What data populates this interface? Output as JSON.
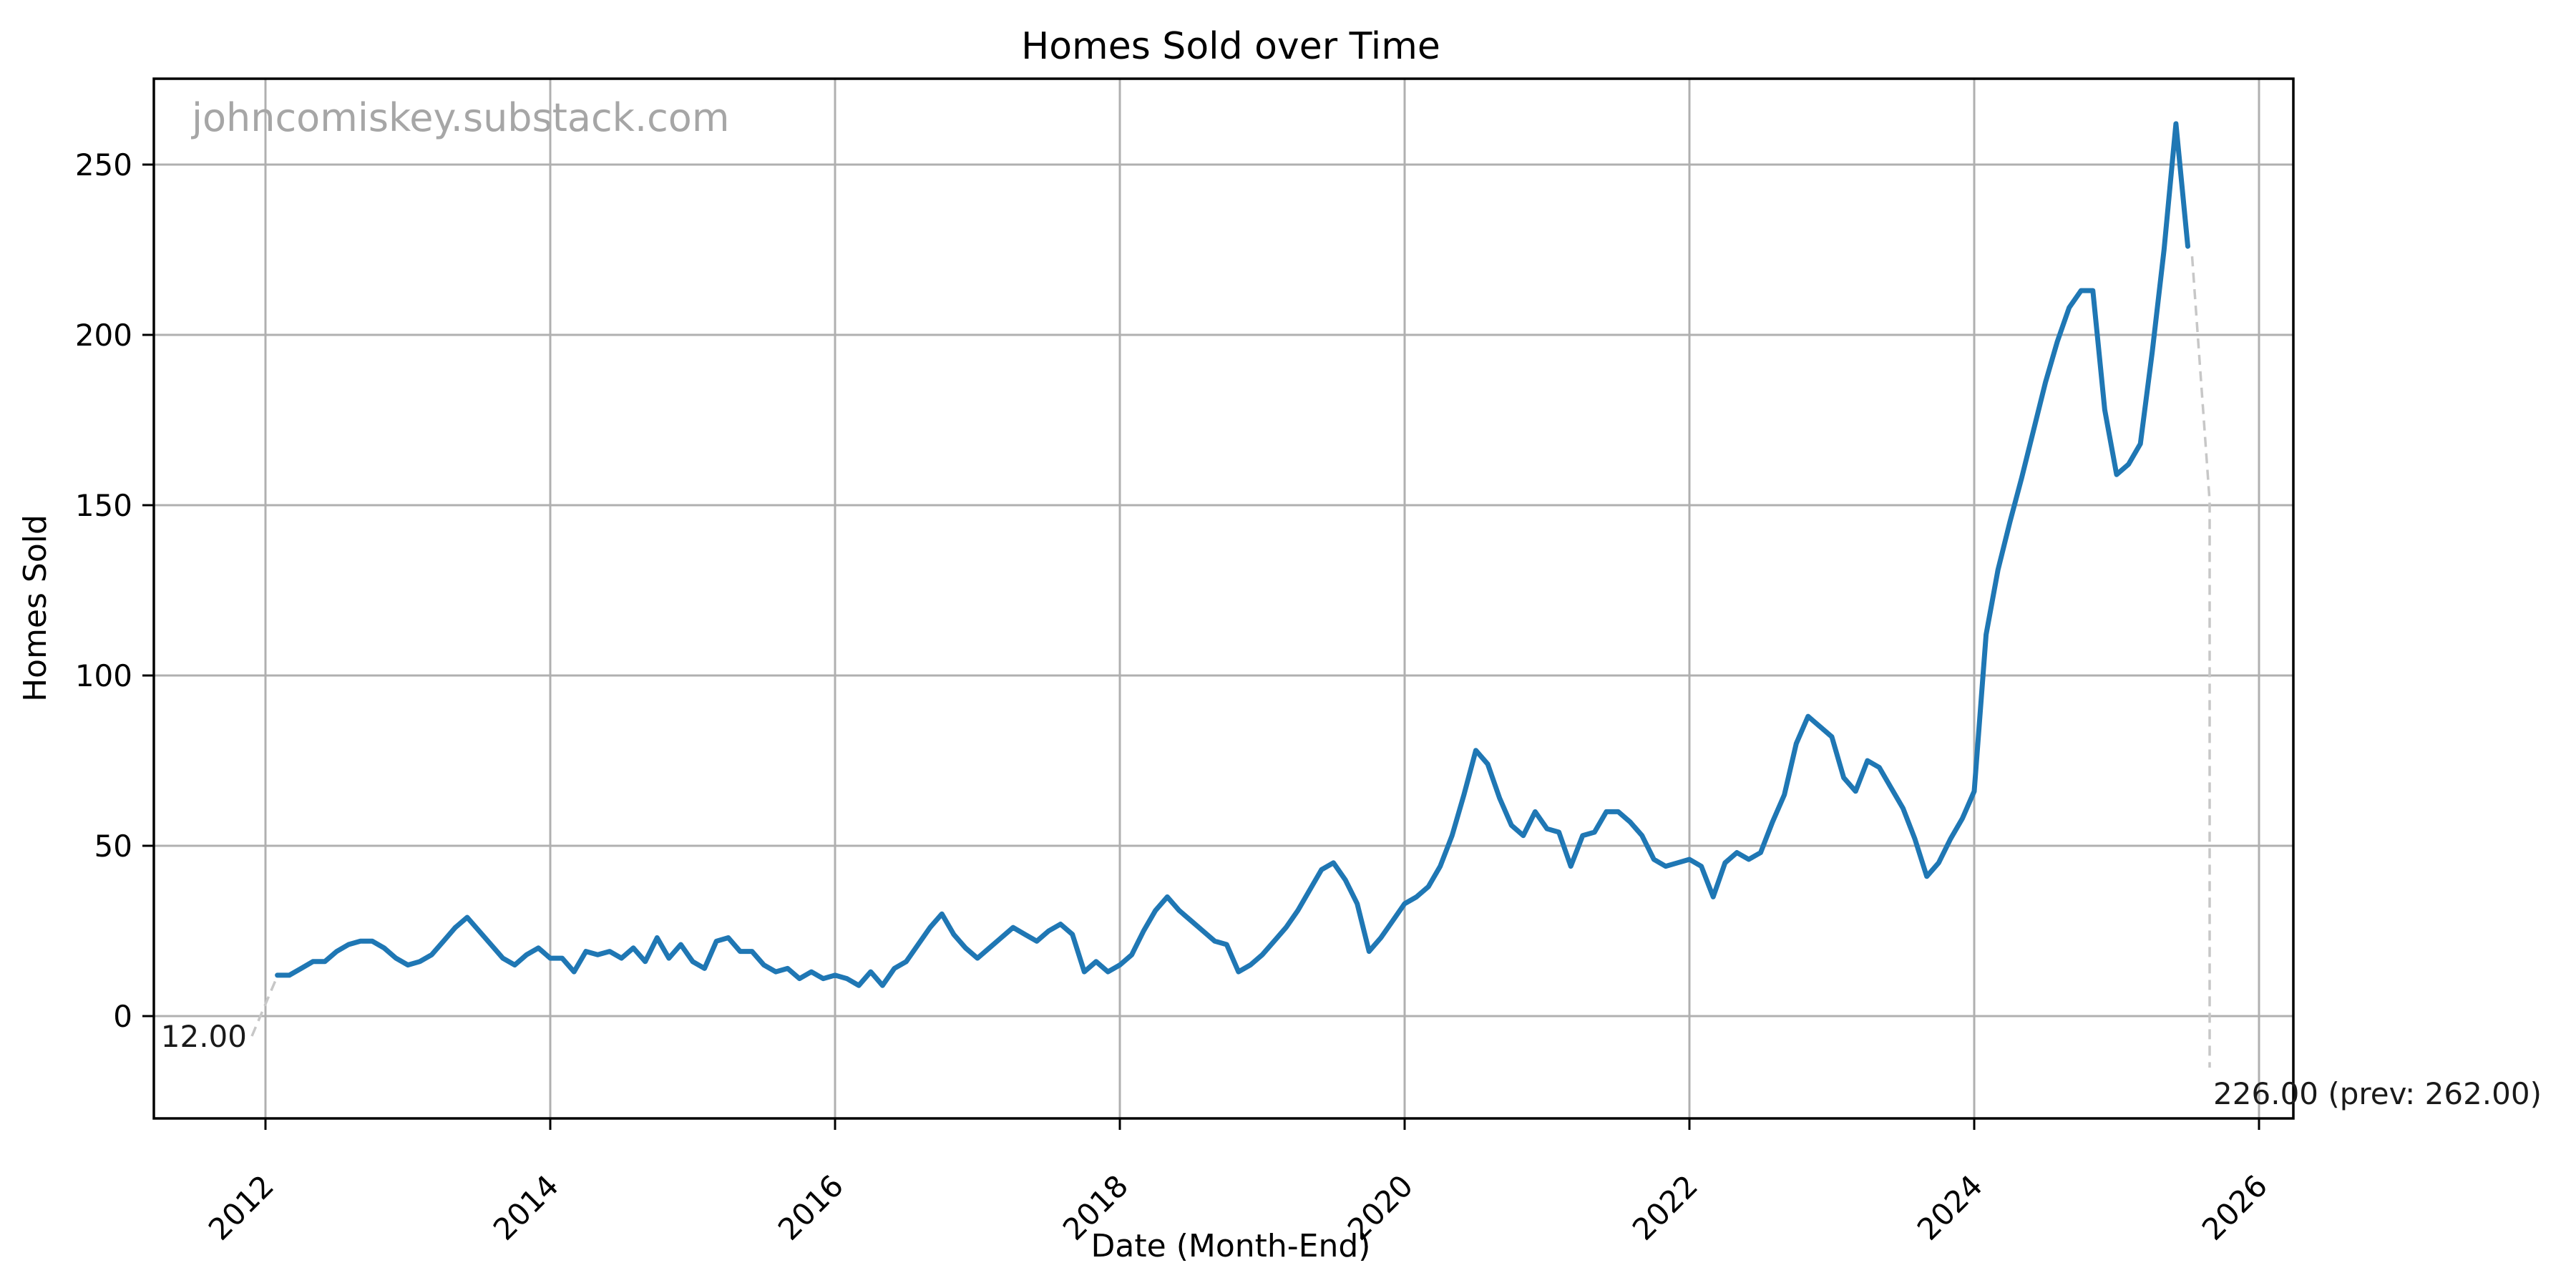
{
  "chart_data": {
    "type": "line",
    "title": "Homes Sold over Time",
    "xlabel": "Date (Month-End)",
    "ylabel": "Homes Sold",
    "watermark": "johncomiskey.substack.com",
    "grid": true,
    "legend_position": "none",
    "line_color": "#1f77b4",
    "grid_color": "#b0b0b0",
    "annotation_line_color": "#c7c7c7",
    "x_start": "2012-01",
    "x_end": "2025-06",
    "frequency": "monthly",
    "x_tick_labels": [
      "2012",
      "2014",
      "2016",
      "2018",
      "2020",
      "2022",
      "2024",
      "2026"
    ],
    "y_ticks": [
      0,
      50,
      100,
      150,
      200,
      250
    ],
    "ylim": [
      -30,
      275
    ],
    "series": [
      {
        "name": "Homes Sold",
        "values": [
          12,
          12,
          14,
          16,
          16,
          19,
          21,
          22,
          22,
          20,
          17,
          15,
          16,
          18,
          22,
          26,
          29,
          25,
          21,
          17,
          15,
          18,
          20,
          17,
          17,
          13,
          19,
          18,
          19,
          17,
          20,
          16,
          23,
          17,
          21,
          16,
          14,
          22,
          23,
          19,
          19,
          15,
          13,
          14,
          11,
          13,
          11,
          12,
          11,
          9,
          13,
          9,
          14,
          16,
          21,
          26,
          30,
          24,
          20,
          17,
          20,
          23,
          26,
          24,
          22,
          25,
          27,
          24,
          13,
          16,
          13,
          15,
          18,
          25,
          31,
          35,
          31,
          28,
          25,
          22,
          21,
          13,
          15,
          18,
          22,
          26,
          31,
          37,
          43,
          45,
          40,
          33,
          19,
          23,
          28,
          33,
          35,
          38,
          44,
          53,
          65,
          78,
          74,
          64,
          56,
          53,
          60,
          55,
          54,
          44,
          53,
          54,
          60,
          60,
          57,
          53,
          46,
          44,
          45,
          46,
          44,
          35,
          45,
          48,
          46,
          48,
          57,
          65,
          80,
          88,
          85,
          82,
          70,
          66,
          75,
          73,
          67,
          61,
          52,
          41,
          45,
          52,
          58,
          66,
          112,
          131,
          145,
          158,
          172,
          186,
          198,
          208,
          213,
          213,
          178,
          159,
          162,
          168,
          195,
          225,
          262,
          226
        ]
      }
    ],
    "annotations": {
      "first_point_label": "12.00",
      "first_point_value": 12,
      "last_point_label": "226.00 (prev: 262.00)",
      "last_point_value": 226,
      "prev_point_value": 262
    }
  }
}
